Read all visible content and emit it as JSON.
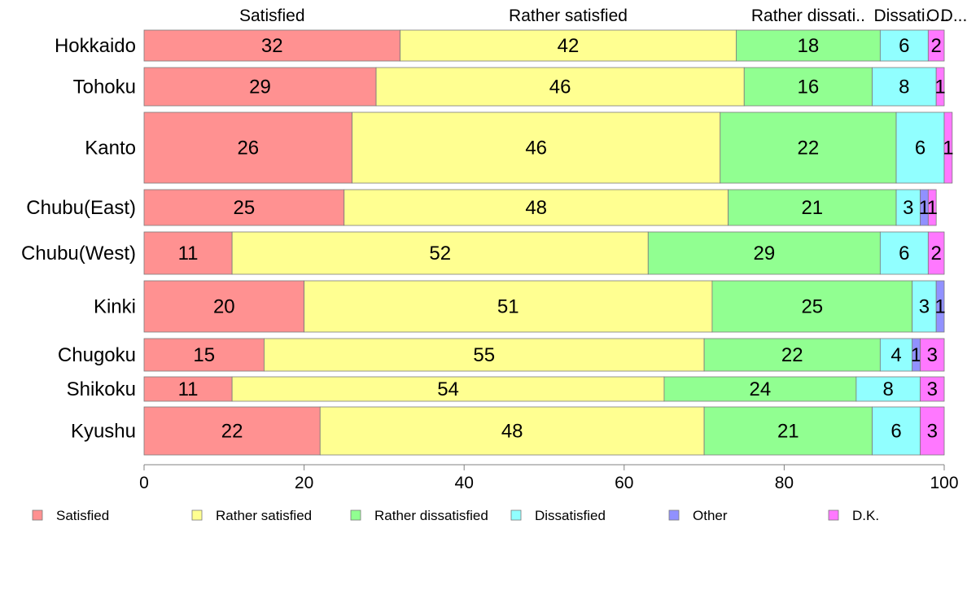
{
  "chart_data": {
    "type": "bar",
    "orientation": "horizontal",
    "stacked": true,
    "categories": [
      "Hokkaido",
      "Tohoku",
      "Kanto",
      "Chubu(East)",
      "Chubu(West)",
      "Kinki",
      "Chugoku",
      "Shikoku",
      "Kyushu"
    ],
    "series": [
      {
        "name": "Satisfied",
        "color": "#ff9191",
        "values": [
          32,
          29,
          26,
          25,
          11,
          20,
          15,
          11,
          22
        ]
      },
      {
        "name": "Rather satisfied",
        "color": "#ffff91",
        "values": [
          42,
          46,
          46,
          48,
          52,
          51,
          55,
          54,
          48
        ]
      },
      {
        "name": "Rather dissatisfied",
        "color": "#91ff91",
        "values": [
          18,
          16,
          22,
          21,
          29,
          25,
          22,
          24,
          21
        ]
      },
      {
        "name": "Dissatisfied",
        "color": "#91ffff",
        "values": [
          6,
          8,
          6,
          3,
          6,
          3,
          4,
          8,
          6
        ]
      },
      {
        "name": "Other",
        "color": "#9191ff",
        "values": [
          0,
          0,
          0,
          1,
          0,
          1,
          1,
          0,
          0
        ]
      },
      {
        "name": "D.K.",
        "color": "#ff78ff",
        "values": [
          2,
          1,
          1,
          1,
          2,
          0,
          3,
          3,
          3
        ]
      }
    ],
    "top_labels": [
      "Satisfied",
      "Rather satisfied",
      "Rather dissati..",
      "Dissati..",
      "O..",
      "D..."
    ],
    "xticks": [
      "0",
      "20",
      "40",
      "60",
      "80",
      "100"
    ],
    "xlim": [
      0,
      100
    ],
    "legend_position": "bottom"
  }
}
